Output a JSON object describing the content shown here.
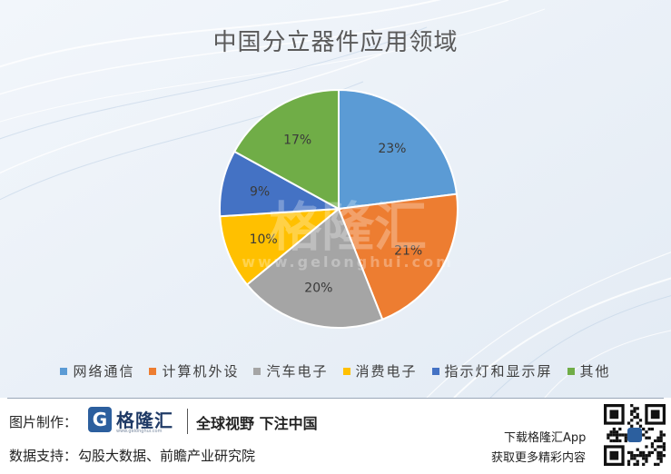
{
  "chart_data": {
    "type": "pie",
    "title": "中国分立器件应用领域",
    "slices": [
      {
        "label": "网络通信",
        "value": 23,
        "display": "23%",
        "color": "#5b9bd5"
      },
      {
        "label": "计算机外设",
        "value": 21,
        "display": "21%",
        "color": "#ed7d31"
      },
      {
        "label": "汽车电子",
        "value": 20,
        "display": "20%",
        "color": "#a5a5a5"
      },
      {
        "label": "消费电子",
        "value": 10,
        "display": "10%",
        "color": "#ffc000"
      },
      {
        "label": "指示灯和显示屏",
        "value": 9,
        "display": "9%",
        "color": "#4472c4"
      },
      {
        "label": "其他",
        "value": 17,
        "display": "17%",
        "color": "#70ad47"
      }
    ],
    "legend_position": "bottom"
  },
  "footer": {
    "credit_label": "图片制作：",
    "brand_name": "格隆汇",
    "brand_url": "www.gelonghui.com",
    "slogan": "全球视野 下注中国",
    "source_label": "数据支持：",
    "source_text": "勾股大数据、前瞻产业研究院",
    "app_line1": "下载格隆汇App",
    "app_line2": "获取更多精彩内容"
  },
  "watermark": {
    "text": "格隆汇",
    "url": "www.gelonghui.com"
  }
}
